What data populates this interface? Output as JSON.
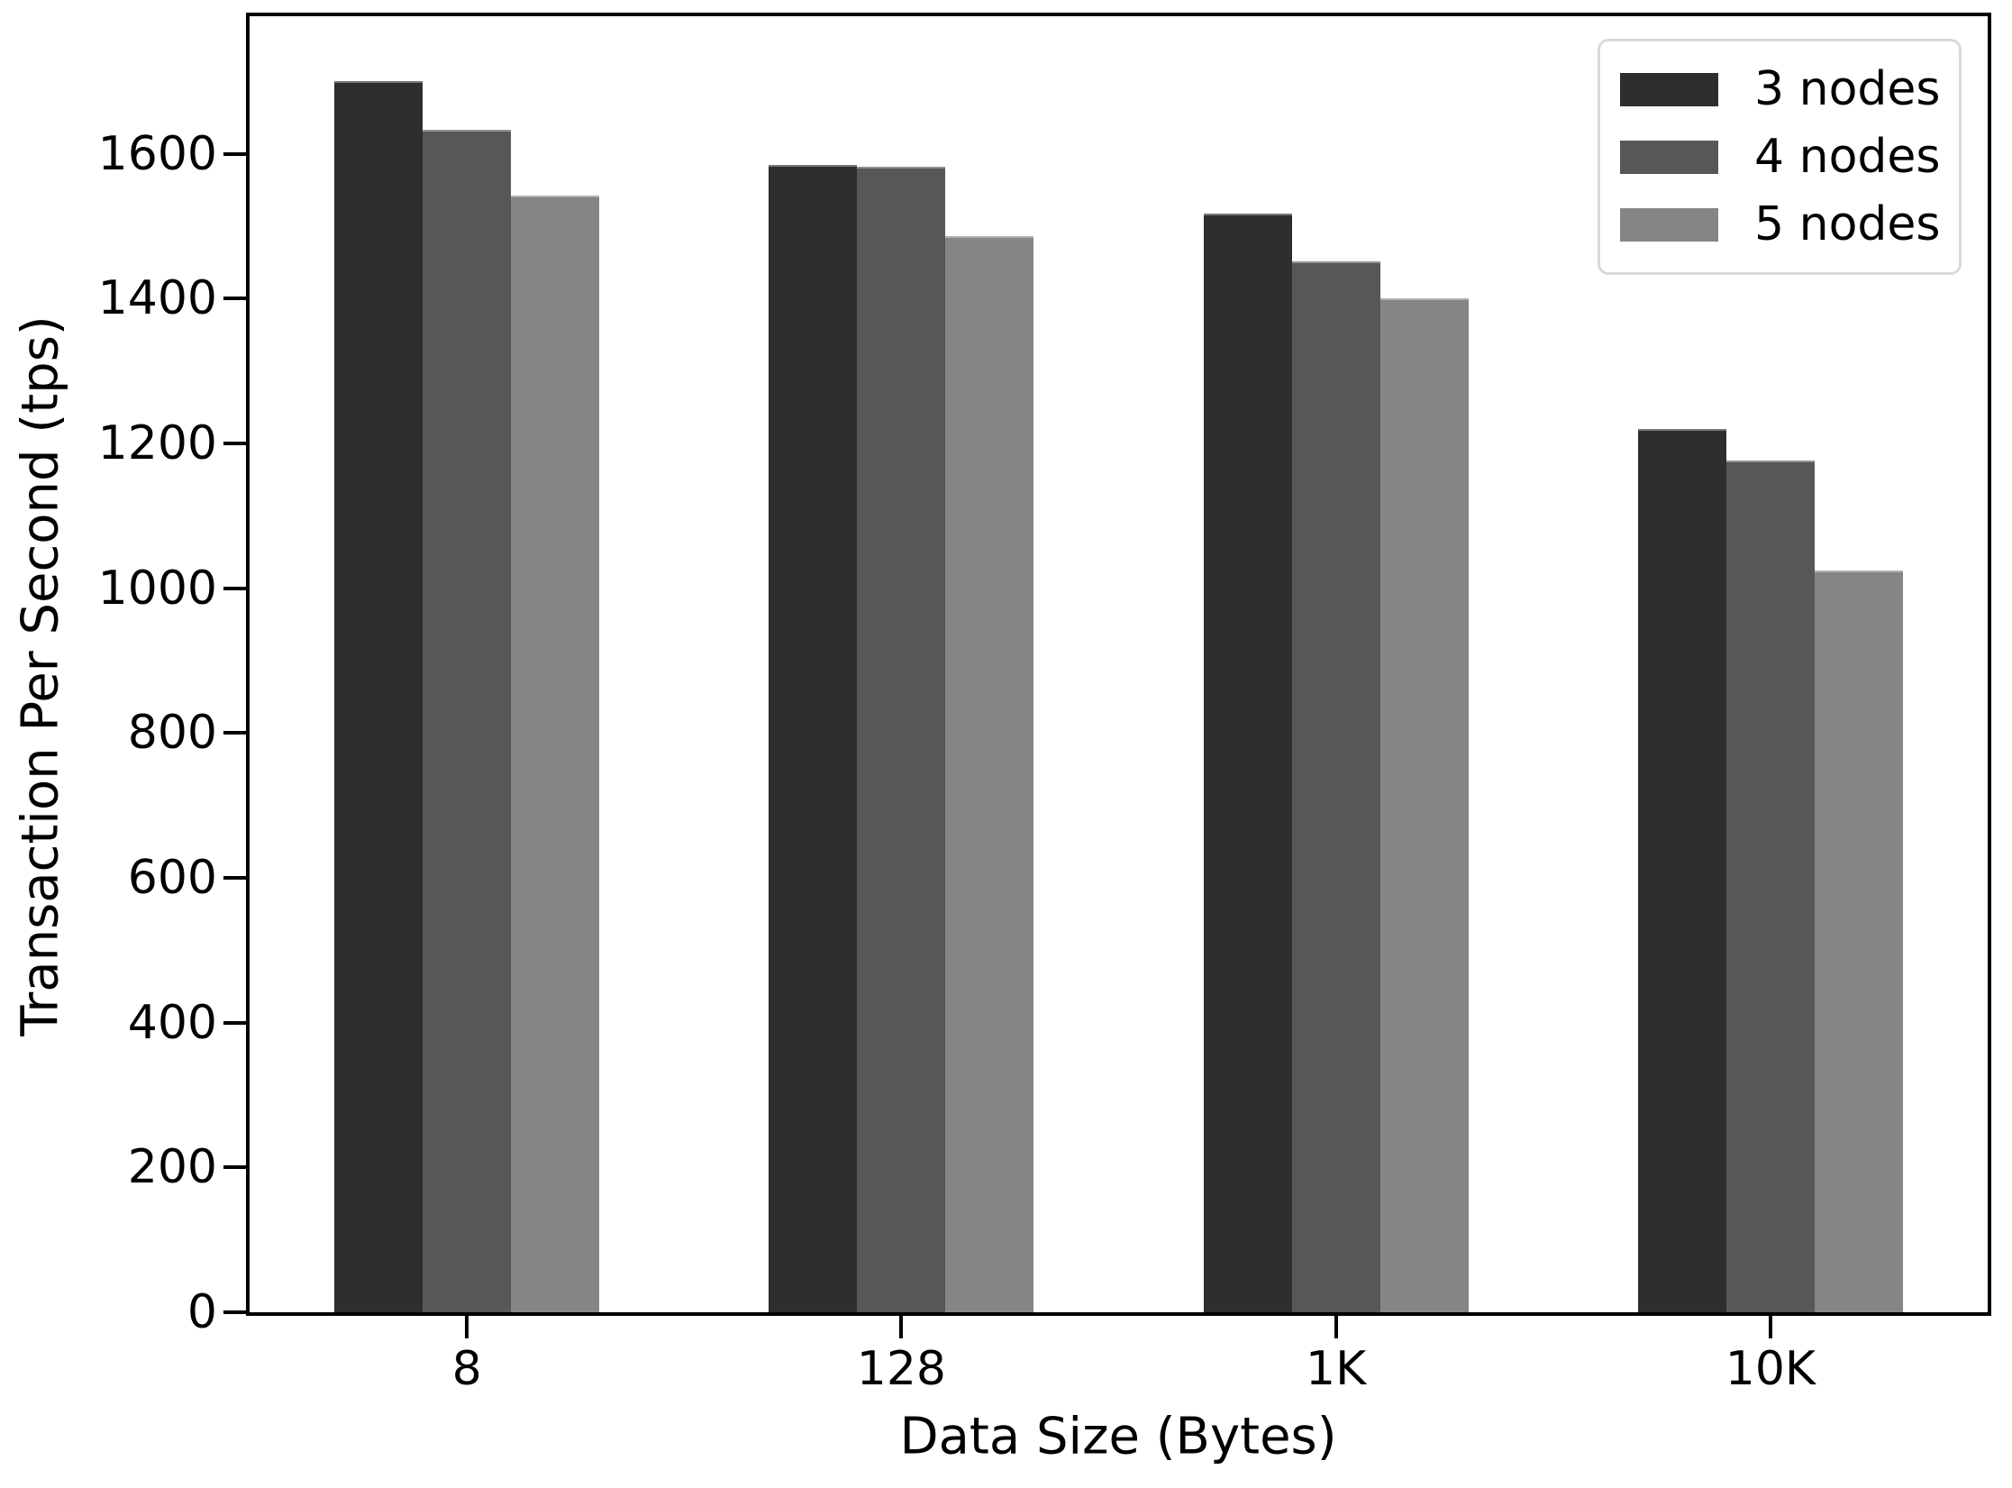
{
  "chart_data": {
    "type": "bar",
    "title": "",
    "xlabel": "Data Size (Bytes)",
    "ylabel": "Transaction Per Second (tps)",
    "categories": [
      "8",
      "128",
      "1K",
      "10K"
    ],
    "series": [
      {
        "name": "3 nodes",
        "color": "#2e2e2e",
        "values": [
          1700,
          1585,
          1518,
          1220
        ]
      },
      {
        "name": "4 nodes",
        "color": "#575757",
        "values": [
          1633,
          1582,
          1452,
          1177
        ]
      },
      {
        "name": "5 nodes",
        "color": "#858585",
        "values": [
          1542,
          1486,
          1400,
          1025
        ]
      }
    ],
    "yticks": [
      0,
      200,
      400,
      600,
      800,
      1000,
      1200,
      1400,
      1600
    ],
    "ylim": [
      0,
      1790
    ],
    "grid": false,
    "legend_position": "upper-right",
    "legend_entries": [
      "3 nodes",
      "4 nodes",
      "5 nodes"
    ]
  }
}
